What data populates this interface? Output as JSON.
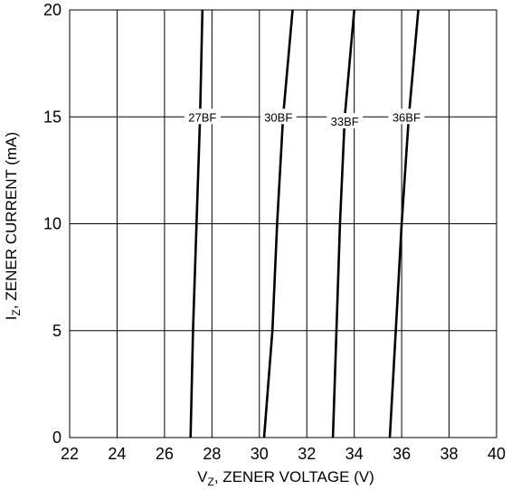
{
  "chart_data": {
    "type": "line",
    "xlabel": {
      "main": "V",
      "sub": "Z",
      "rest": ", ZENER VOLTAGE (V)"
    },
    "ylabel": {
      "main": "I",
      "sub": "Z",
      "rest": ", ZENER CURRENT (mA)"
    },
    "xlim": [
      22,
      40
    ],
    "ylim": [
      0,
      20
    ],
    "x_ticks": [
      22,
      24,
      26,
      28,
      30,
      32,
      34,
      36,
      38,
      40
    ],
    "y_ticks": [
      0,
      5,
      10,
      15,
      20
    ],
    "grid": true,
    "series": [
      {
        "name": "27BF",
        "label_at": [
          27.6,
          15
        ],
        "points": [
          [
            27.1,
            0
          ],
          [
            27.2,
            5
          ],
          [
            27.35,
            10
          ],
          [
            27.5,
            15
          ],
          [
            27.6,
            20
          ]
        ]
      },
      {
        "name": "30BF",
        "label_at": [
          30.8,
          15
        ],
        "points": [
          [
            30.2,
            0
          ],
          [
            30.55,
            5
          ],
          [
            30.75,
            10
          ],
          [
            31.0,
            15
          ],
          [
            31.4,
            20
          ]
        ]
      },
      {
        "name": "33BF",
        "label_at": [
          33.6,
          14.8
        ],
        "points": [
          [
            33.1,
            0
          ],
          [
            33.25,
            5
          ],
          [
            33.4,
            10
          ],
          [
            33.6,
            15
          ],
          [
            34.0,
            20
          ]
        ]
      },
      {
        "name": "36BF",
        "label_at": [
          36.2,
          15
        ],
        "points": [
          [
            35.5,
            0
          ],
          [
            35.75,
            5
          ],
          [
            36.0,
            10
          ],
          [
            36.3,
            15
          ],
          [
            36.7,
            20
          ]
        ]
      }
    ]
  }
}
